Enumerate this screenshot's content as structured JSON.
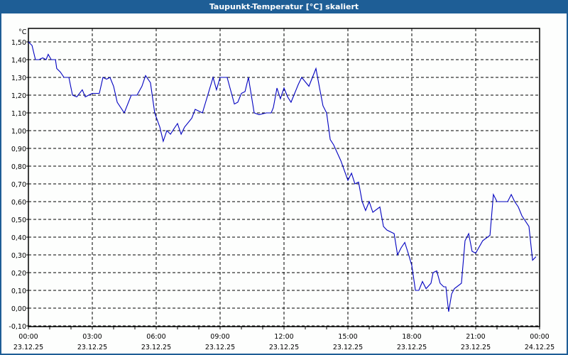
{
  "window": {
    "title": "Taupunkt-Temperatur [°C] skaliert"
  },
  "colors": {
    "titlebar": "#1e5e96",
    "plot_background": "#fdfefd",
    "line": "#0000c0",
    "grid": "#000000"
  },
  "chart_data": {
    "type": "line",
    "title": "Taupunkt-Temperatur [°C] skaliert",
    "xlabel": "",
    "ylabel": "°C",
    "ylim": [
      -0.1,
      1.5
    ],
    "xlim_hours": [
      0,
      24
    ],
    "grid": true,
    "grid_style": "dashed",
    "legend": null,
    "y_ticks": [
      "1,50",
      "1,40",
      "1,30",
      "1,20",
      "1,10",
      "1,00",
      "0,90",
      "0,80",
      "0,70",
      "0,60",
      "0,50",
      "0,40",
      "0,30",
      "0,20",
      "0,10",
      "0,00",
      "-0,10"
    ],
    "y_tick_values": [
      1.5,
      1.4,
      1.3,
      1.2,
      1.1,
      1.0,
      0.9,
      0.8,
      0.7,
      0.6,
      0.5,
      0.4,
      0.3,
      0.2,
      0.1,
      0.0,
      -0.1
    ],
    "x_ticks": [
      {
        "time": "00:00",
        "date": "23.12.25"
      },
      {
        "time": "03:00",
        "date": "23.12.25"
      },
      {
        "time": "06:00",
        "date": "23.12.25"
      },
      {
        "time": "09:00",
        "date": "23.12.25"
      },
      {
        "time": "12:00",
        "date": "23.12.25"
      },
      {
        "time": "15:00",
        "date": "23.12.25"
      },
      {
        "time": "18:00",
        "date": "23.12.25"
      },
      {
        "time": "21:00",
        "date": "23.12.25"
      },
      {
        "time": "00:00",
        "date": "24.12.25"
      }
    ],
    "series": [
      {
        "name": "Taupunkt-Temperatur",
        "x_hours": [
          0.0,
          0.17,
          0.33,
          0.5,
          0.67,
          0.83,
          0.93,
          1.07,
          1.27,
          1.33,
          1.5,
          1.67,
          1.9,
          2.07,
          2.27,
          2.53,
          2.67,
          2.83,
          3.0,
          3.33,
          3.5,
          3.67,
          3.83,
          4.0,
          4.17,
          4.5,
          4.83,
          5.1,
          5.33,
          5.5,
          5.73,
          5.93,
          6.17,
          6.33,
          6.5,
          6.67,
          6.83,
          7.0,
          7.17,
          7.33,
          7.67,
          7.83,
          8.17,
          8.67,
          8.83,
          9.0,
          9.33,
          9.67,
          9.83,
          10.0,
          10.17,
          10.33,
          10.6,
          10.83,
          11.17,
          11.4,
          11.5,
          11.67,
          11.83,
          12.0,
          12.17,
          12.33,
          12.67,
          12.83,
          13.17,
          13.5,
          13.67,
          13.83,
          14.0,
          14.17,
          14.33,
          14.67,
          15.0,
          15.17,
          15.33,
          15.5,
          15.67,
          15.83,
          16.0,
          16.17,
          16.5,
          16.67,
          16.83,
          17.17,
          17.33,
          17.5,
          17.67,
          17.83,
          18.0,
          18.17,
          18.33,
          18.5,
          18.67,
          18.9,
          19.0,
          19.17,
          19.33,
          19.5,
          19.6,
          19.73,
          19.87,
          20.0,
          20.33,
          20.5,
          20.67,
          20.83,
          21.0,
          21.33,
          21.67,
          21.83,
          22.0,
          22.17,
          22.5,
          22.67,
          22.83,
          23.0,
          23.17,
          23.5,
          23.67,
          23.83
        ],
        "values": [
          1.5,
          1.48,
          1.4,
          1.4,
          1.41,
          1.4,
          1.43,
          1.4,
          1.4,
          1.35,
          1.33,
          1.3,
          1.3,
          1.2,
          1.19,
          1.23,
          1.19,
          1.2,
          1.21,
          1.21,
          1.3,
          1.29,
          1.3,
          1.25,
          1.16,
          1.1,
          1.2,
          1.2,
          1.25,
          1.31,
          1.27,
          1.1,
          1.02,
          0.94,
          1.0,
          0.98,
          1.01,
          1.04,
          0.98,
          1.02,
          1.07,
          1.12,
          1.1,
          1.3,
          1.23,
          1.3,
          1.3,
          1.15,
          1.16,
          1.21,
          1.22,
          1.3,
          1.1,
          1.09,
          1.1,
          1.1,
          1.13,
          1.24,
          1.18,
          1.24,
          1.19,
          1.16,
          1.26,
          1.3,
          1.25,
          1.35,
          1.24,
          1.14,
          1.1,
          0.95,
          0.92,
          0.83,
          0.72,
          0.76,
          0.7,
          0.71,
          0.6,
          0.55,
          0.6,
          0.54,
          0.57,
          0.46,
          0.44,
          0.42,
          0.3,
          0.34,
          0.37,
          0.31,
          0.24,
          0.1,
          0.1,
          0.15,
          0.11,
          0.14,
          0.2,
          0.21,
          0.14,
          0.12,
          0.12,
          -0.02,
          0.08,
          0.11,
          0.14,
          0.38,
          0.42,
          0.32,
          0.31,
          0.38,
          0.41,
          0.64,
          0.6,
          0.6,
          0.6,
          0.64,
          0.6,
          0.57,
          0.52,
          0.46,
          0.27,
          0.29,
          0.29
        ]
      }
    ]
  }
}
